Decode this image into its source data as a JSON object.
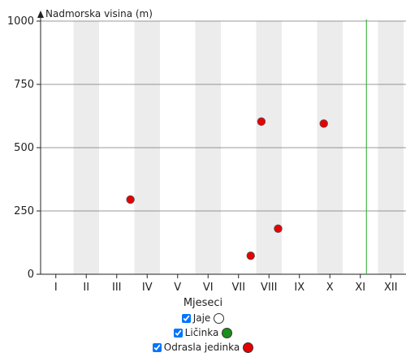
{
  "chart_data": {
    "type": "scatter",
    "ylabel": "Nadmorska visina (m)",
    "xlabel": "Mjeseci",
    "ylim": [
      0,
      1000
    ],
    "yticks": [
      "0",
      "250",
      "500",
      "750",
      "1000"
    ],
    "categories": [
      "I",
      "II",
      "III",
      "IV",
      "V",
      "VI",
      "VII",
      "VIII",
      "IX",
      "X",
      "XI",
      "XII"
    ],
    "alternate_month_shading": true,
    "grid": "horizontal",
    "marker_line_month": 11.2,
    "marker_line_color": "#22aa22",
    "series": [
      {
        "name": "Jaje",
        "color": "#ffffff",
        "checked": true,
        "points": []
      },
      {
        "name": "Ličinka",
        "color": "#1a8f1a",
        "checked": true,
        "points": []
      },
      {
        "name": "Odrasla jedinka",
        "color": "#e60000",
        "checked": true,
        "points": [
          {
            "month": 3.45,
            "y": 295
          },
          {
            "month": 7.4,
            "y": 73
          },
          {
            "month": 7.75,
            "y": 603
          },
          {
            "month": 8.3,
            "y": 180
          },
          {
            "month": 9.8,
            "y": 595
          }
        ]
      }
    ],
    "legend_placement": "bottom-center"
  }
}
